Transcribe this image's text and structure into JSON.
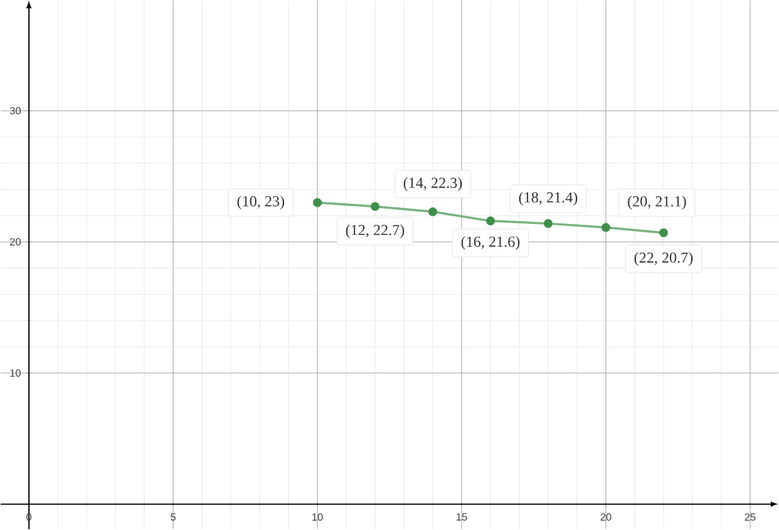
{
  "chart_data": {
    "type": "line",
    "x": [
      10,
      12,
      14,
      16,
      18,
      20,
      22
    ],
    "series": [
      {
        "color": "#3f8f4b",
        "values": [
          23,
          22.7,
          22.3,
          21.6,
          21.4,
          21.1,
          20.7
        ]
      }
    ],
    "value_labels": [
      "(10, 23)",
      "(12, 22.7)",
      "(14, 22.3)",
      "(16, 21.6)",
      "(18, 21.4)",
      "(20, 21.1)",
      "(22, 20.7)"
    ],
    "xlim": [
      -0.98,
      25.98
    ],
    "ylim": [
      -1.9,
      38.4
    ],
    "xticks": [
      0,
      5,
      10,
      15,
      20,
      25
    ],
    "yticks": [
      10,
      20,
      30
    ],
    "grid": true,
    "marker": "circle",
    "line_style": "solid"
  }
}
